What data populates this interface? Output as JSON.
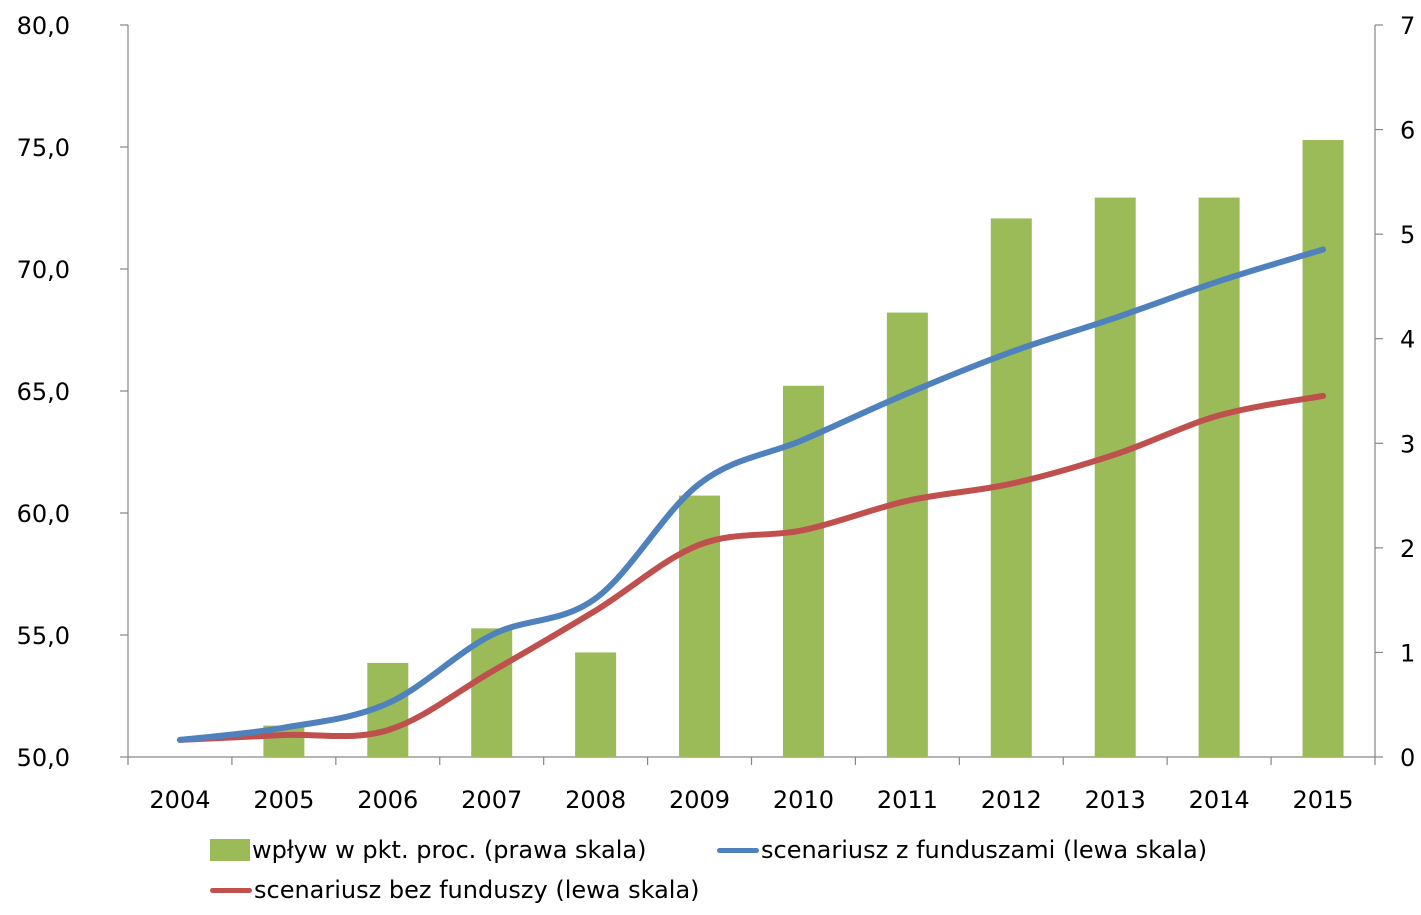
{
  "chart_data": {
    "type": "bar+line",
    "categories": [
      "2004",
      "2005",
      "2006",
      "2007",
      "2008",
      "2009",
      "2010",
      "2011",
      "2012",
      "2013",
      "2014",
      "2015"
    ],
    "left_axis": {
      "min": 50,
      "max": 80,
      "ticks": [
        "50,0",
        "55,0",
        "60,0",
        "65,0",
        "70,0",
        "75,0",
        "80,0"
      ]
    },
    "right_axis": {
      "min": 0,
      "max": 7,
      "ticks": [
        "0",
        "1",
        "2",
        "3",
        "4",
        "5",
        "6",
        "7"
      ]
    },
    "series": [
      {
        "name": "wpływ w pkt. proc. (prawa skala)",
        "kind": "bar",
        "axis": "right",
        "color": "#9BBB59",
        "values": [
          0.0,
          0.3,
          0.9,
          1.23,
          1.0,
          2.5,
          3.55,
          4.25,
          5.15,
          5.35,
          5.35,
          5.9
        ]
      },
      {
        "name": "scenariusz z funduszami (lewa skala)",
        "kind": "line",
        "axis": "left",
        "color": "#4F81BD",
        "values": [
          50.7,
          51.2,
          52.2,
          55.0,
          56.5,
          61.2,
          63.0,
          64.9,
          66.6,
          68.0,
          69.5,
          70.8
        ]
      },
      {
        "name": "scenariusz bez funduszy (lewa skala)",
        "kind": "line",
        "axis": "left",
        "color": "#C0504D",
        "values": [
          50.7,
          50.9,
          51.1,
          53.5,
          56.0,
          58.7,
          59.3,
          60.5,
          61.2,
          62.4,
          64.0,
          64.8
        ]
      }
    ],
    "legend_position": "bottom"
  }
}
